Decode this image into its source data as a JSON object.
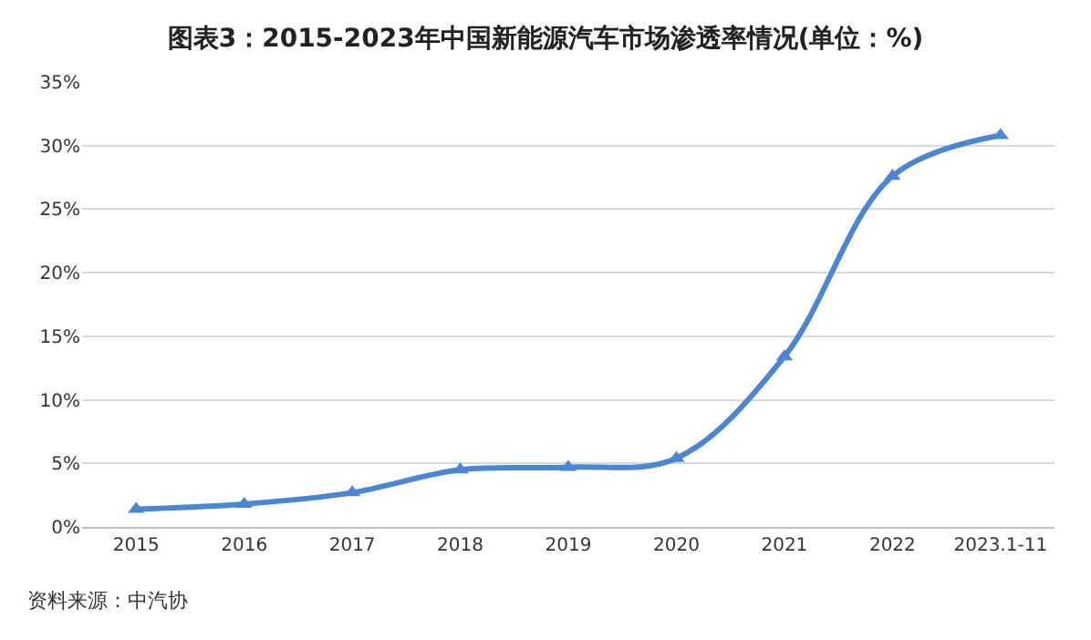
{
  "chart_data": {
    "type": "line",
    "title": "图表3：2015-2023年中国新能源汽车市场渗透率情况(单位：%)",
    "categories": [
      "2015",
      "2016",
      "2017",
      "2018",
      "2019",
      "2020",
      "2021",
      "2022",
      "2023.1-11"
    ],
    "series": [
      {
        "color": "#4a86d4",
        "values": [
          1.4,
          1.8,
          2.7,
          4.5,
          4.7,
          5.4,
          13.4,
          27.6,
          30.8
        ]
      }
    ],
    "ylim": [
      0,
      35
    ],
    "yticks": [
      {
        "value": 0,
        "label": "0%"
      },
      {
        "value": 5,
        "label": "5%"
      },
      {
        "value": 10,
        "label": "10%"
      },
      {
        "value": 15,
        "label": "15%"
      },
      {
        "value": 20,
        "label": "20%"
      },
      {
        "value": 25,
        "label": "25%"
      },
      {
        "value": 30,
        "label": "30%"
      },
      {
        "value": 35,
        "label": "35%"
      }
    ],
    "grid": "y",
    "marker": "triangle",
    "line_style": "solid",
    "legend": false,
    "annotations": [
      "资料来源：中汽协"
    ]
  }
}
